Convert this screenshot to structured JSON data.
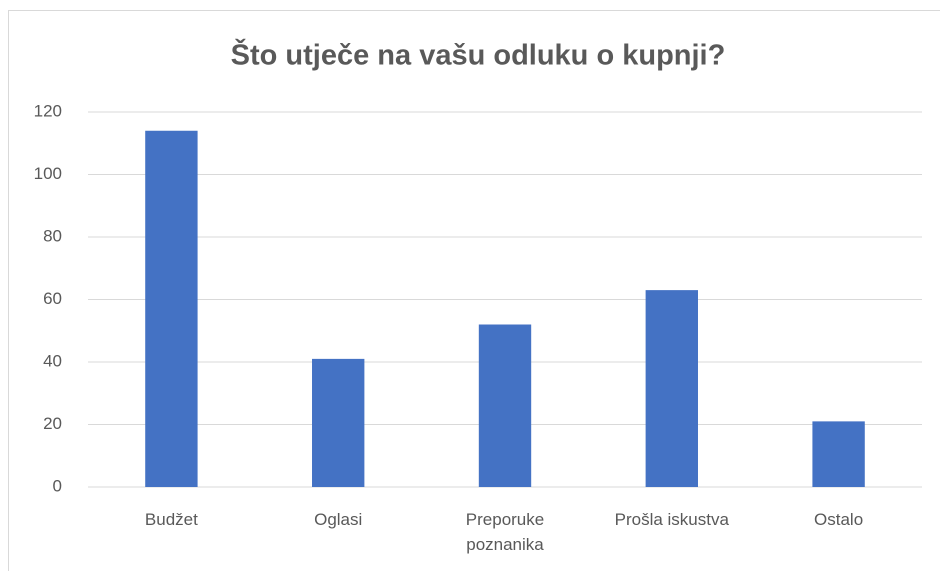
{
  "chart_data": {
    "type": "bar",
    "title": "Što utječe na vašu odluku o kupnji?",
    "categories": [
      "Budžet",
      "Oglasi",
      "Preporuke poznanika",
      "Prošla iskustva",
      "Ostalo"
    ],
    "values": [
      114,
      41,
      52,
      63,
      21
    ],
    "color": "#4472c4",
    "ylim": [
      0,
      120
    ],
    "yticks": [
      0,
      20,
      40,
      60,
      80,
      100,
      120
    ],
    "grid": true
  }
}
